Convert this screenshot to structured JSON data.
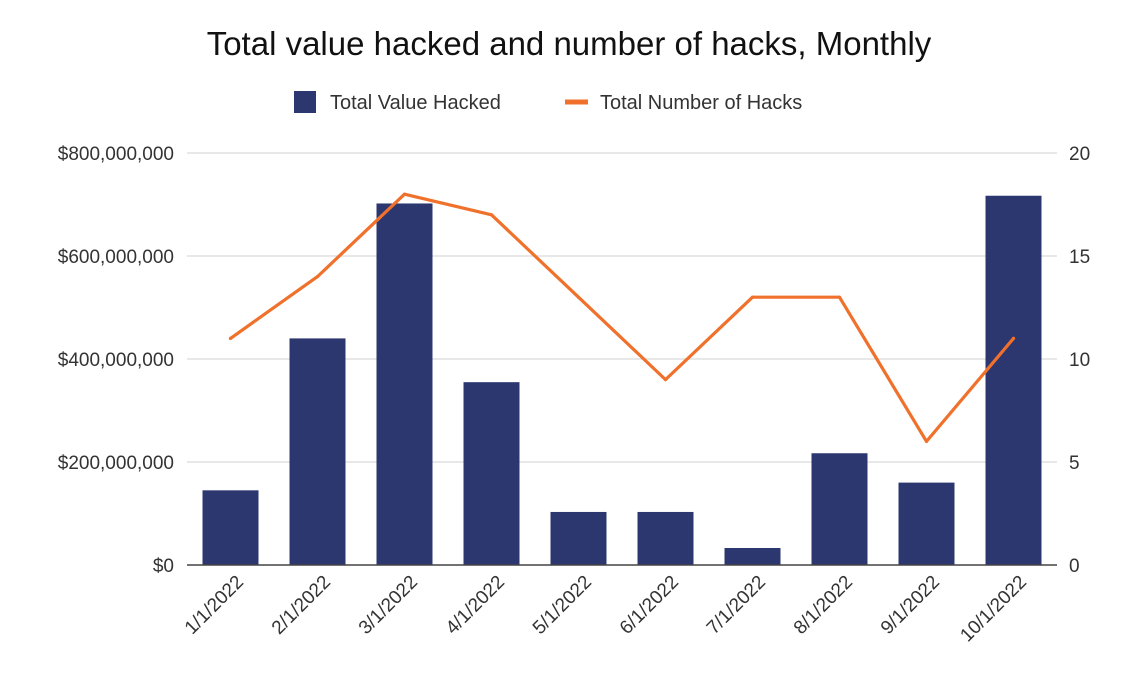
{
  "chart_data": {
    "type": "bar",
    "title": "Total value hacked and number of hacks, Monthly",
    "categories": [
      "1/1/2022",
      "2/1/2022",
      "3/1/2022",
      "4/1/2022",
      "5/1/2022",
      "6/1/2022",
      "7/1/2022",
      "8/1/2022",
      "9/1/2022",
      "10/1/2022"
    ],
    "series": [
      {
        "name": "Total Value Hacked",
        "type": "bar",
        "axis": "left",
        "color": "#2c3770",
        "values": [
          145000000,
          440000000,
          702000000,
          355000000,
          103000000,
          103000000,
          33000000,
          217000000,
          160000000,
          717000000
        ]
      },
      {
        "name": "Total Number of Hacks",
        "type": "line",
        "axis": "right",
        "color": "#f0712c",
        "values": [
          11,
          14,
          18,
          17,
          13,
          9,
          13,
          13,
          6,
          11
        ]
      }
    ],
    "y_left": {
      "min": 0,
      "max": 800000000,
      "ticks": [
        0,
        200000000,
        400000000,
        600000000,
        800000000
      ],
      "tick_labels": [
        "$0",
        "$200,000,000",
        "$400,000,000",
        "$600,000,000",
        "$800,000,000"
      ]
    },
    "y_right": {
      "min": 0,
      "max": 20,
      "ticks": [
        0,
        5,
        10,
        15,
        20
      ],
      "tick_labels": [
        "0",
        "5",
        "10",
        "15",
        "20"
      ]
    },
    "grid": true,
    "legend": "top-center",
    "xlabel": "",
    "ylabel": ""
  }
}
